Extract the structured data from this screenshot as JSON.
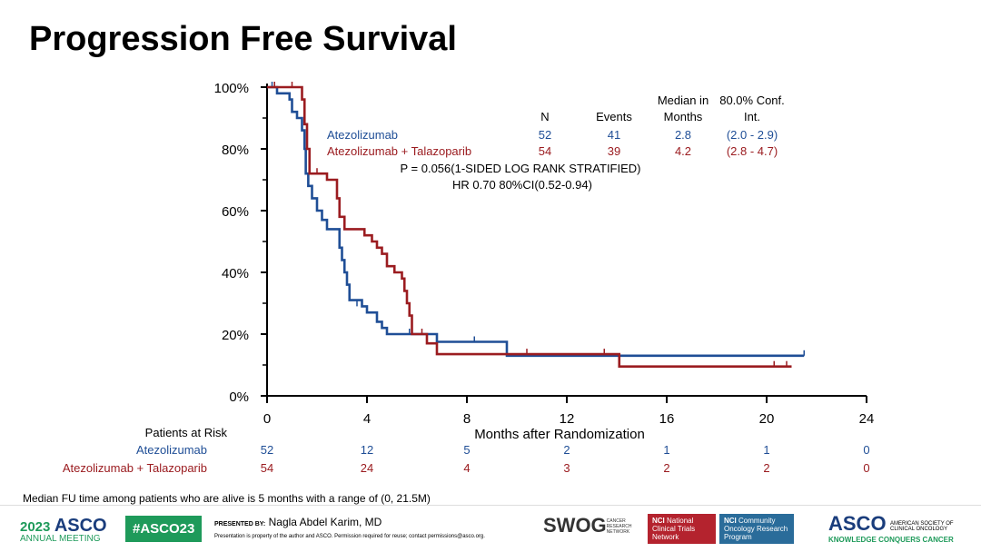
{
  "title": "Progression Free Survival",
  "chart_data": {
    "type": "line",
    "subtype": "kaplan-meier step",
    "xlabel": "Months after Randomization",
    "ylabel": "",
    "xlim": [
      0,
      24
    ],
    "ylim": [
      0,
      100
    ],
    "xticks": [
      0,
      4,
      8,
      12,
      16,
      20,
      24
    ],
    "yticks": [
      "0%",
      "20%",
      "40%",
      "60%",
      "80%",
      "100%"
    ],
    "yvals": [
      0,
      20,
      40,
      60,
      80,
      100
    ],
    "colors": {
      "Atezolizumab": "#1f4e96",
      "Atezolizumab + Talazoparib": "#9b1c20"
    },
    "series": [
      {
        "name": "Atezolizumab",
        "color": "#1f4e96",
        "x": [
          0,
          0.4,
          0.9,
          1.0,
          1.2,
          1.4,
          1.5,
          1.55,
          1.65,
          1.8,
          2.0,
          2.2,
          2.4,
          2.8,
          2.9,
          3.0,
          3.1,
          3.2,
          3.3,
          3.8,
          4.0,
          4.4,
          4.6,
          4.8,
          6.8,
          9.6,
          21.5
        ],
        "y": [
          100,
          98,
          96,
          92,
          90,
          86,
          80,
          72,
          68,
          64,
          60,
          57,
          54,
          54,
          48,
          44,
          40,
          36,
          31,
          29,
          27,
          24,
          22,
          20,
          17.5,
          13,
          13
        ],
        "censored": [
          [
            0.2,
            100
          ],
          [
            3.6,
            29
          ],
          [
            5.7,
            20
          ],
          [
            8.3,
            17.5
          ],
          [
            21.5,
            13
          ]
        ]
      },
      {
        "name": "Atezolizumab + Talazoparib",
        "color": "#9b1c20",
        "x": [
          0,
          1.3,
          1.4,
          1.5,
          1.6,
          1.7,
          2.1,
          2.4,
          2.7,
          2.8,
          2.9,
          3.1,
          3.7,
          3.9,
          4.2,
          4.4,
          4.6,
          4.8,
          5.1,
          5.4,
          5.5,
          5.6,
          5.7,
          5.8,
          6.4,
          6.8,
          14.1,
          21
        ],
        "y": [
          100,
          100,
          96,
          88,
          80,
          72,
          72,
          70,
          70,
          64,
          58,
          54,
          54,
          52,
          50,
          48,
          46,
          42,
          40,
          38,
          34,
          30,
          26,
          20,
          17,
          13.5,
          9.5,
          9.5
        ],
        "censored": [
          [
            0.3,
            100
          ],
          [
            1.0,
            100
          ],
          [
            2.0,
            72
          ],
          [
            6.2,
            20
          ],
          [
            10.4,
            13.5
          ],
          [
            13.5,
            13.5
          ],
          [
            20.3,
            9.5
          ],
          [
            20.8,
            9.5
          ]
        ]
      }
    ],
    "summary": {
      "headers": [
        "N",
        "Events",
        "Median in Months",
        "80.0% Conf. Int."
      ],
      "header_top": [
        "",
        "",
        "Median",
        "80.0%"
      ],
      "header_bottom": [
        "N",
        "Events",
        "in Months",
        "Conf. Int."
      ],
      "rows": [
        {
          "name": "Atezolizumab",
          "n": "52",
          "events": "41",
          "median": "2.8",
          "ci": "(2.0 - 2.9)"
        },
        {
          "name": "Atezolizumab + Talazoparib",
          "n": "54",
          "events": "39",
          "median": "4.2",
          "ci": "(2.8 - 4.7)"
        }
      ],
      "p_value": "P = 0.056(1-SIDED LOG RANK STRATIFIED)",
      "hr": "HR 0.70 80%CI(0.52-0.94)"
    },
    "risk_table": {
      "title": "Patients at Risk",
      "rows": [
        {
          "name": "Atezolizumab",
          "values": [
            "52",
            "12",
            "5",
            "2",
            "1",
            "1",
            "0"
          ]
        },
        {
          "name": "Atezolizumab + Talazoparib",
          "values": [
            "54",
            "24",
            "4",
            "3",
            "2",
            "2",
            "0"
          ]
        }
      ]
    }
  },
  "note": "Median FU time among patients who are alive is 5 months with a range of (0, 21.5M)",
  "footer": {
    "asco_year": "2023",
    "asco": "ASCO",
    "annual_meeting": "ANNUAL MEETING",
    "hashtag": "#ASCO23",
    "presented_by": "PRESENTED BY:",
    "presenter": "Nagla Abdel Karim, MD",
    "disclaimer": "Presentation is property of the author and ASCO. Permission required for reuse; contact permissions@asco.org.",
    "swog": "SWOG",
    "swog_sub": "CANCER RESEARCH NETWORK",
    "nci1": "National Clinical Trials Network",
    "nci2": "Community Oncology Research Program",
    "nci": "NCI",
    "asco_right": "ASCO",
    "asco_society": "AMERICAN SOCIETY OF CLINICAL ONCOLOGY",
    "tagline": "KNOWLEDGE CONQUERS CANCER"
  }
}
